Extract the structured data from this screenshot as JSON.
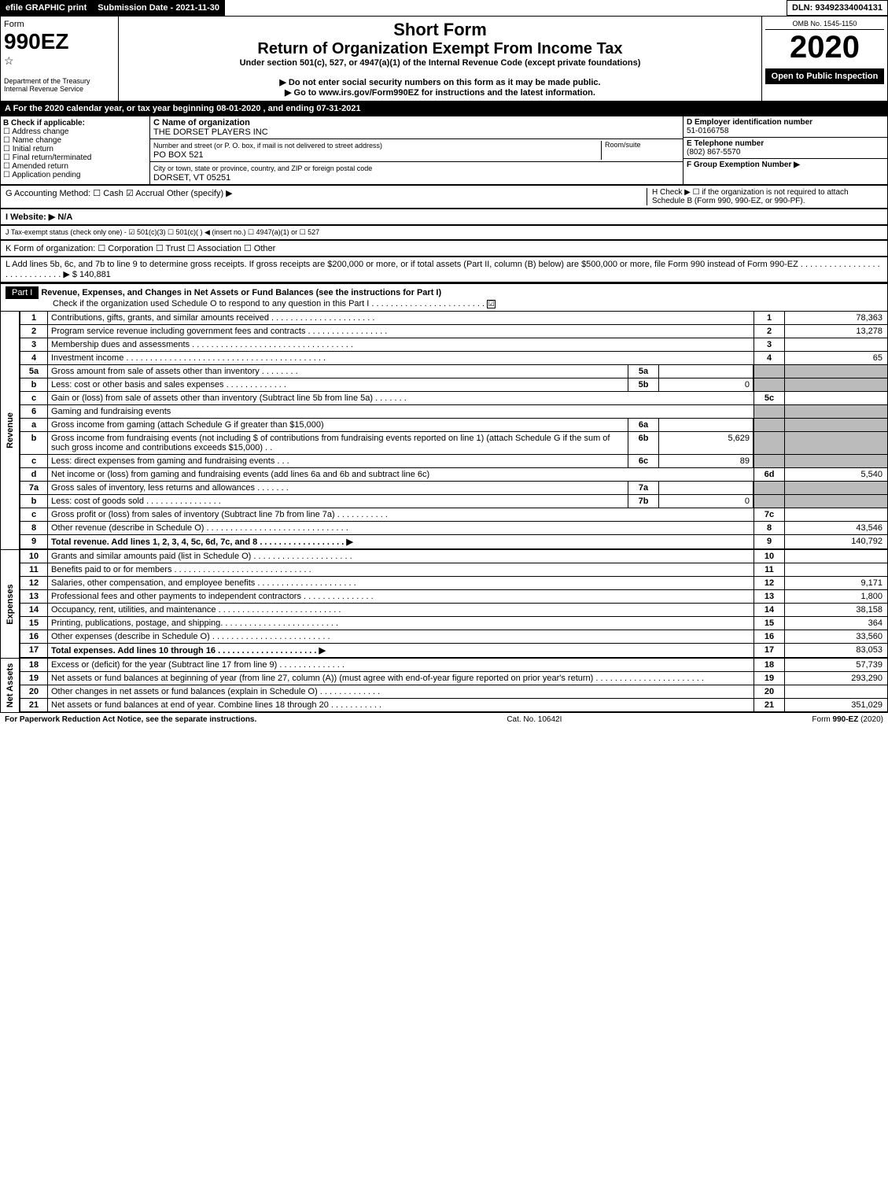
{
  "top": {
    "efile": "efile GRAPHIC print",
    "submission": "Submission Date - 2021-11-30",
    "dln": "DLN: 93492334004131"
  },
  "header": {
    "form_label": "Form",
    "form_no": "990EZ",
    "dept": "Department of the Treasury",
    "irs": "Internal Revenue Service",
    "short_form": "Short Form",
    "title": "Return of Organization Exempt From Income Tax",
    "subtitle": "Under section 501(c), 527, or 4947(a)(1) of the Internal Revenue Code (except private foundations)",
    "warn1": "▶ Do not enter social security numbers on this form as it may be made public.",
    "warn2": "▶ Go to www.irs.gov/Form990EZ for instructions and the latest information.",
    "omb": "OMB No. 1545-1150",
    "year": "2020",
    "open": "Open to Public Inspection"
  },
  "period": "A For the 2020 calendar year, or tax year beginning 08-01-2020 , and ending 07-31-2021",
  "b": {
    "label": "B Check if applicable:",
    "opts": [
      "Address change",
      "Name change",
      "Initial return",
      "Final return/terminated",
      "Amended return",
      "Application pending"
    ],
    "c_label": "C Name of organization",
    "c_name": "THE DORSET PLAYERS INC",
    "c_addr_label": "Number and street (or P. O. box, if mail is not delivered to street address)",
    "c_addr": "PO BOX 521",
    "room": "Room/suite",
    "c_city_label": "City or town, state or province, country, and ZIP or foreign postal code",
    "c_city": "DORSET, VT  05251",
    "d_label": "D Employer identification number",
    "d_val": "51-0166758",
    "e_label": "E Telephone number",
    "e_val": "(802) 867-5570",
    "f_label": "F Group Exemption Number  ▶"
  },
  "g": "G Accounting Method:   ☐ Cash   ☑ Accrual   Other (specify) ▶",
  "h": "H  Check ▶  ☐  if the organization is not required to attach Schedule B (Form 990, 990-EZ, or 990-PF).",
  "i": "I Website: ▶ N/A",
  "j": "J Tax-exempt status (check only one) - ☑ 501(c)(3) ☐ 501(c)(  ) ◀ (insert no.) ☐ 4947(a)(1) or ☐ 527",
  "k": "K Form of organization:   ☐ Corporation   ☐ Trust   ☐ Association   ☐ Other",
  "l": "L Add lines 5b, 6c, and 7b to line 9 to determine gross receipts. If gross receipts are $200,000 or more, or if total assets (Part II, column (B) below) are $500,000 or more, file Form 990 instead of Form 990-EZ . . . . . . . . . . . . . . . . . . . . . . . . . . . . . ▶ $ 140,881",
  "part1": {
    "label": "Part I",
    "title": "Revenue, Expenses, and Changes in Net Assets or Fund Balances (see the instructions for Part I)",
    "sub": "Check if the organization used Schedule O to respond to any question in this Part I . . . . . . . . . . . . . . . . . . . . . . . .",
    "checked": "☑"
  },
  "revenue_label": "Revenue",
  "expenses_label": "Expenses",
  "netassets_label": "Net Assets",
  "lines": {
    "l1": {
      "n": "1",
      "d": "Contributions, gifts, grants, and similar amounts received . . . . . . . . . . . . . . . . . . . . . .",
      "k": "1",
      "v": "78,363"
    },
    "l2": {
      "n": "2",
      "d": "Program service revenue including government fees and contracts . . . . . . . . . . . . . . . . .",
      "k": "2",
      "v": "13,278"
    },
    "l3": {
      "n": "3",
      "d": "Membership dues and assessments . . . . . . . . . . . . . . . . . . . . . . . . . . . . . . . . . .",
      "k": "3",
      "v": ""
    },
    "l4": {
      "n": "4",
      "d": "Investment income . . . . . . . . . . . . . . . . . . . . . . . . . . . . . . . . . . . . . . . . . .",
      "k": "4",
      "v": "65"
    },
    "l5a": {
      "n": "5a",
      "d": "Gross amount from sale of assets other than inventory . . . . . . . .",
      "sk": "5a",
      "sv": ""
    },
    "l5b": {
      "n": "b",
      "d": "Less: cost or other basis and sales expenses . . . . . . . . . . . . .",
      "sk": "5b",
      "sv": "0"
    },
    "l5c": {
      "n": "c",
      "d": "Gain or (loss) from sale of assets other than inventory (Subtract line 5b from line 5a) . . . . . . .",
      "k": "5c",
      "v": ""
    },
    "l6": {
      "n": "6",
      "d": "Gaming and fundraising events"
    },
    "l6a": {
      "n": "a",
      "d": "Gross income from gaming (attach Schedule G if greater than $15,000)",
      "sk": "6a",
      "sv": ""
    },
    "l6b": {
      "n": "b",
      "d": "Gross income from fundraising events (not including $                    of contributions from fundraising events reported on line 1) (attach Schedule G if the sum of such gross income and contributions exceeds $15,000)     . .",
      "sk": "6b",
      "sv": "5,629"
    },
    "l6c": {
      "n": "c",
      "d": "Less: direct expenses from gaming and fundraising events     . . .",
      "sk": "6c",
      "sv": "89"
    },
    "l6d": {
      "n": "d",
      "d": "Net income or (loss) from gaming and fundraising events (add lines 6a and 6b and subtract line 6c)",
      "k": "6d",
      "v": "5,540"
    },
    "l7a": {
      "n": "7a",
      "d": "Gross sales of inventory, less returns and allowances . . . . . . .",
      "sk": "7a",
      "sv": ""
    },
    "l7b": {
      "n": "b",
      "d": "Less: cost of goods sold        . . . . . . . . . . . . . . . .",
      "sk": "7b",
      "sv": "0"
    },
    "l7c": {
      "n": "c",
      "d": "Gross profit or (loss) from sales of inventory (Subtract line 7b from line 7a) . . . . . . . . . . .",
      "k": "7c",
      "v": ""
    },
    "l8": {
      "n": "8",
      "d": "Other revenue (describe in Schedule O) . . . . . . . . . . . . . . . . . . . . . . . . . . . . . .",
      "k": "8",
      "v": "43,546"
    },
    "l9": {
      "n": "9",
      "d": "Total revenue. Add lines 1, 2, 3, 4, 5c, 6d, 7c, and 8  . . . . . . . . . . . . . . . . . .   ▶",
      "k": "9",
      "v": "140,792",
      "bold": true
    },
    "l10": {
      "n": "10",
      "d": "Grants and similar amounts paid (list in Schedule O) . . . . . . . . . . . . . . . . . . . . .",
      "k": "10",
      "v": ""
    },
    "l11": {
      "n": "11",
      "d": "Benefits paid to or for members     . . . . . . . . . . . . . . . . . . . . . . . . . . . . .",
      "k": "11",
      "v": ""
    },
    "l12": {
      "n": "12",
      "d": "Salaries, other compensation, and employee benefits . . . . . . . . . . . . . . . . . . . . .",
      "k": "12",
      "v": "9,171"
    },
    "l13": {
      "n": "13",
      "d": "Professional fees and other payments to independent contractors . . . . . . . . . . . . . . .",
      "k": "13",
      "v": "1,800"
    },
    "l14": {
      "n": "14",
      "d": "Occupancy, rent, utilities, and maintenance . . . . . . . . . . . . . . . . . . . . . . . . . .",
      "k": "14",
      "v": "38,158"
    },
    "l15": {
      "n": "15",
      "d": "Printing, publications, postage, and shipping. . . . . . . . . . . . . . . . . . . . . . . . .",
      "k": "15",
      "v": "364"
    },
    "l16": {
      "n": "16",
      "d": "Other expenses (describe in Schedule O)    . . . . . . . . . . . . . . . . . . . . . . . . .",
      "k": "16",
      "v": "33,560"
    },
    "l17": {
      "n": "17",
      "d": "Total expenses. Add lines 10 through 16     . . . . . . . . . . . . . . . . . . . . .    ▶",
      "k": "17",
      "v": "83,053",
      "bold": true
    },
    "l18": {
      "n": "18",
      "d": "Excess or (deficit) for the year (Subtract line 17 from line 9)       . . . . . . . . . . . . . .",
      "k": "18",
      "v": "57,739"
    },
    "l19": {
      "n": "19",
      "d": "Net assets or fund balances at beginning of year (from line 27, column (A)) (must agree with end-of-year figure reported on prior year's return) . . . . . . . . . . . . . . . . . . . . . . .",
      "k": "19",
      "v": "293,290"
    },
    "l20": {
      "n": "20",
      "d": "Other changes in net assets or fund balances (explain in Schedule O) . . . . . . . . . . . . .",
      "k": "20",
      "v": ""
    },
    "l21": {
      "n": "21",
      "d": "Net assets or fund balances at end of year. Combine lines 18 through 20 . . . . . . . . . . .",
      "k": "21",
      "v": "351,029"
    }
  },
  "footer": {
    "left": "For Paperwork Reduction Act Notice, see the separate instructions.",
    "mid": "Cat. No. 10642I",
    "right": "Form 990-EZ (2020)"
  },
  "colors": {
    "black": "#000000",
    "grey": "#bbbbbb"
  }
}
